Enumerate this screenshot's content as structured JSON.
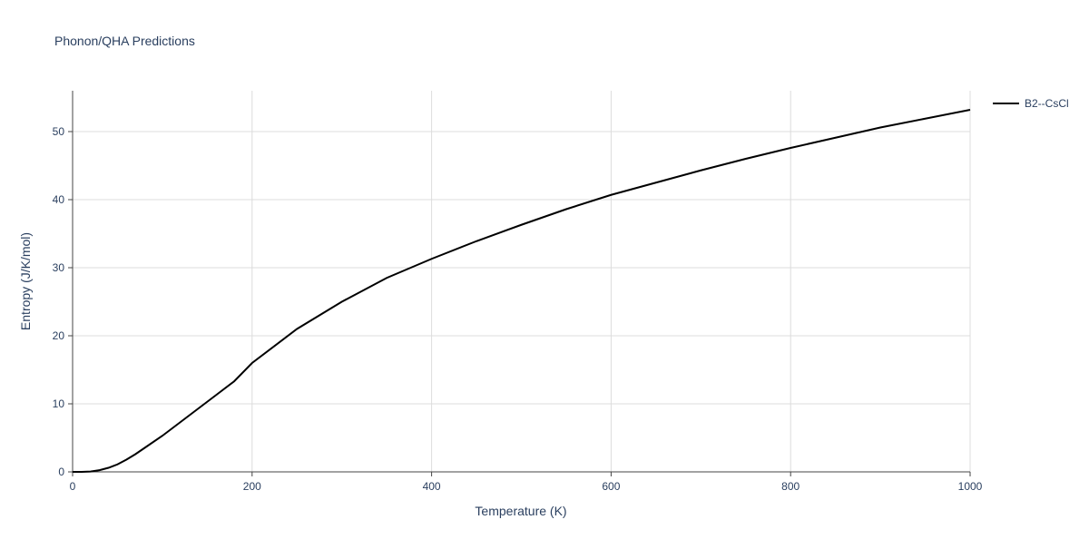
{
  "chart_data": {
    "type": "line",
    "title": "Phonon/QHA Predictions",
    "x_label": "Temperature (K)",
    "y_label": "Entropy (J/K/mol)",
    "x": [
      0,
      10,
      20,
      30,
      40,
      50,
      60,
      70,
      80,
      100,
      120,
      140,
      160,
      180,
      200,
      250,
      300,
      350,
      400,
      450,
      500,
      550,
      600,
      650,
      700,
      750,
      800,
      850,
      900,
      950,
      1000
    ],
    "series": [
      {
        "name": "B2--CsCl",
        "color": "#000000",
        "values": [
          0,
          0,
          0.05,
          0.25,
          0.6,
          1.1,
          1.8,
          2.6,
          3.5,
          5.3,
          7.3,
          9.3,
          11.3,
          13.3,
          16.0,
          21.0,
          25.0,
          28.5,
          31.3,
          33.9,
          36.3,
          38.6,
          40.7,
          42.5,
          44.3,
          46.0,
          47.6,
          49.1,
          50.6,
          51.9,
          53.2
        ]
      }
    ],
    "xlim": [
      0,
      1000
    ],
    "xticks": [
      0,
      200,
      400,
      600,
      800,
      1000
    ],
    "ylim": [
      0,
      56
    ],
    "yticks": [
      0,
      10,
      20,
      30,
      40,
      50
    ],
    "grid": true,
    "legend": "right"
  }
}
